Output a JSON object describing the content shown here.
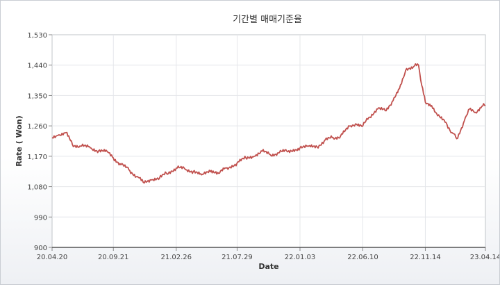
{
  "chart_data": {
    "type": "line",
    "title": "기간별 매매기준율",
    "xlabel": "Date",
    "ylabel": "Rate ( Won)",
    "ylim": [
      900,
      1530
    ],
    "yticks": [
      900,
      990,
      1080,
      1170,
      1260,
      1350,
      1440,
      1530
    ],
    "ytick_labels": [
      "900",
      "990",
      "1,080",
      "1,170",
      "1,260",
      "1,350",
      "1,440",
      "1,530"
    ],
    "xlim": [
      "2020-04-20",
      "2023-04-14"
    ],
    "xticks": [
      {
        "date": "2020-04-20",
        "label": "20.04.20"
      },
      {
        "date": "2020-09-21",
        "label": "20.09.21"
      },
      {
        "date": "2021-02-26",
        "label": "21.02.26"
      },
      {
        "date": "2021-07-29",
        "label": "21.07.29"
      },
      {
        "date": "2022-01-03",
        "label": "22.01.03"
      },
      {
        "date": "2022-06-10",
        "label": "22.06.10"
      },
      {
        "date": "2022-11-14",
        "label": "22.11.14"
      },
      {
        "date": "2023-04-14",
        "label": "23.04.14"
      }
    ],
    "grid": true,
    "line_color": "#c0504d",
    "series": [
      {
        "points": [
          [
            "2020-04-20",
            1225
          ],
          [
            "2020-05-05",
            1232
          ],
          [
            "2020-05-25",
            1240
          ],
          [
            "2020-06-10",
            1205
          ],
          [
            "2020-07-01",
            1200
          ],
          [
            "2020-07-25",
            1195
          ],
          [
            "2020-08-15",
            1186
          ],
          [
            "2020-09-05",
            1185
          ],
          [
            "2020-09-21",
            1165
          ],
          [
            "2020-10-10",
            1145
          ],
          [
            "2020-10-30",
            1130
          ],
          [
            "2020-11-20",
            1110
          ],
          [
            "2020-12-05",
            1093
          ],
          [
            "2020-12-25",
            1100
          ],
          [
            "2021-01-15",
            1105
          ],
          [
            "2021-02-01",
            1120
          ],
          [
            "2021-02-26",
            1135
          ],
          [
            "2021-03-20",
            1132
          ],
          [
            "2021-04-10",
            1125
          ],
          [
            "2021-05-01",
            1115
          ],
          [
            "2021-05-25",
            1128
          ],
          [
            "2021-06-15",
            1120
          ],
          [
            "2021-07-01",
            1135
          ],
          [
            "2021-07-29",
            1150
          ],
          [
            "2021-08-20",
            1165
          ],
          [
            "2021-09-10",
            1170
          ],
          [
            "2021-09-30",
            1185
          ],
          [
            "2021-10-20",
            1175
          ],
          [
            "2021-11-10",
            1180
          ],
          [
            "2021-12-01",
            1185
          ],
          [
            "2022-01-03",
            1195
          ],
          [
            "2022-01-25",
            1200
          ],
          [
            "2022-02-15",
            1198
          ],
          [
            "2022-03-05",
            1215
          ],
          [
            "2022-03-25",
            1225
          ],
          [
            "2022-04-15",
            1230
          ],
          [
            "2022-05-10",
            1260
          ],
          [
            "2022-05-25",
            1265
          ],
          [
            "2022-06-10",
            1260
          ],
          [
            "2022-06-25",
            1285
          ],
          [
            "2022-07-15",
            1310
          ],
          [
            "2022-08-05",
            1305
          ],
          [
            "2022-08-25",
            1335
          ],
          [
            "2022-09-10",
            1370
          ],
          [
            "2022-09-28",
            1430
          ],
          [
            "2022-10-15",
            1435
          ],
          [
            "2022-10-28",
            1440
          ],
          [
            "2022-11-05",
            1380
          ],
          [
            "2022-11-14",
            1330
          ],
          [
            "2022-11-30",
            1320
          ],
          [
            "2022-12-15",
            1290
          ],
          [
            "2023-01-05",
            1270
          ],
          [
            "2023-01-20",
            1240
          ],
          [
            "2023-02-01",
            1222
          ],
          [
            "2023-02-20",
            1275
          ],
          [
            "2023-03-05",
            1310
          ],
          [
            "2023-03-20",
            1300
          ],
          [
            "2023-04-05",
            1318
          ],
          [
            "2023-04-14",
            1320
          ]
        ]
      }
    ]
  }
}
